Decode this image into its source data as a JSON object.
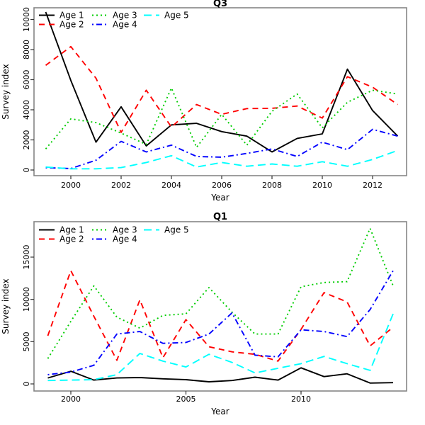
{
  "chart_data": [
    {
      "type": "line",
      "title": "Q3",
      "xlabel": "Year",
      "ylabel": "Survey index",
      "x": [
        1999,
        2000,
        2001,
        2002,
        2003,
        2004,
        2005,
        2006,
        2007,
        2008,
        2009,
        2010,
        2011,
        2012,
        2013
      ],
      "xlim": [
        1999,
        2013
      ],
      "ylim": [
        0,
        10500
      ],
      "grid": false,
      "legend_position": "top-left",
      "x_ticks": [
        2000,
        2002,
        2004,
        2006,
        2008,
        2010,
        2012
      ],
      "x_tick_labels": [
        "2000",
        "2002",
        "2004",
        "2006",
        "2008",
        "2010",
        "2012"
      ],
      "y_ticks": [
        0,
        2000,
        4000,
        6000,
        8000,
        10000
      ],
      "y_tick_labels": [
        "0",
        "2000",
        "4000",
        "6000",
        "8000",
        "10000"
      ],
      "series": [
        {
          "name": "Age 1",
          "color": "#000000",
          "linetype": "solid",
          "values": [
            10500,
            5950,
            1850,
            4200,
            1600,
            3000,
            3100,
            2550,
            2250,
            1200,
            2100,
            2400,
            6700,
            3950,
            2250
          ]
        },
        {
          "name": "Age 2",
          "color": "#FF0000",
          "linetype": "dashed",
          "values": [
            6950,
            8200,
            6100,
            2500,
            5300,
            2850,
            4350,
            3700,
            4080,
            4100,
            4250,
            3450,
            6200,
            5500,
            4350
          ]
        },
        {
          "name": "Age 3",
          "color": "#00CD00",
          "linetype": "dotted",
          "values": [
            1400,
            3400,
            3150,
            2450,
            1700,
            5450,
            1500,
            3700,
            1650,
            3900,
            5050,
            2800,
            4500,
            5300,
            5050
          ]
        },
        {
          "name": "Age 4",
          "color": "#0000FF",
          "linetype": "dotdash",
          "values": [
            150,
            100,
            650,
            1900,
            1200,
            1650,
            900,
            850,
            1100,
            1400,
            900,
            1850,
            1350,
            2700,
            2250
          ]
        },
        {
          "name": "Age 5",
          "color": "#00FFFF",
          "linetype": "longdash",
          "values": [
            200,
            80,
            80,
            160,
            500,
            950,
            200,
            500,
            250,
            400,
            250,
            550,
            250,
            700,
            1300
          ]
        }
      ]
    },
    {
      "type": "line",
      "title": "Q1",
      "xlabel": "Year",
      "ylabel": "Survey index",
      "x": [
        1999,
        2000,
        2001,
        2002,
        2003,
        2004,
        2005,
        2006,
        2007,
        2008,
        2009,
        2010,
        2011,
        2012,
        2013,
        2014
      ],
      "xlim": [
        1999,
        2014
      ],
      "ylim": [
        0,
        18400
      ],
      "grid": false,
      "legend_position": "top-left",
      "x_ticks": [
        2000,
        2005,
        2010
      ],
      "x_tick_labels": [
        "2000",
        "2005",
        "2010"
      ],
      "y_ticks": [
        0,
        5000,
        10000,
        15000
      ],
      "y_tick_labels": [
        "0",
        "5000",
        "10000",
        "15000"
      ],
      "series": [
        {
          "name": "Age 1",
          "color": "#000000",
          "linetype": "solid",
          "values": [
            700,
            1500,
            450,
            700,
            750,
            600,
            500,
            250,
            400,
            800,
            450,
            1900,
            860,
            1200,
            100,
            150
          ]
        },
        {
          "name": "Age 2",
          "color": "#FF0000",
          "linetype": "dashed",
          "values": [
            5700,
            13400,
            8000,
            2800,
            9950,
            3100,
            7600,
            4400,
            3800,
            3500,
            2700,
            6450,
            10800,
            9700,
            4500,
            6700
          ]
        },
        {
          "name": "Age 3",
          "color": "#00CD00",
          "linetype": "dotted",
          "values": [
            3000,
            7400,
            11600,
            7900,
            6600,
            8100,
            8300,
            11400,
            8500,
            5900,
            5900,
            11500,
            12000,
            12100,
            18400,
            11600
          ]
        },
        {
          "name": "Age 4",
          "color": "#0000FF",
          "linetype": "dotdash",
          "values": [
            1100,
            1400,
            2200,
            5900,
            6200,
            4800,
            4900,
            5900,
            8400,
            3400,
            3200,
            6400,
            6200,
            5600,
            8800,
            13400
          ]
        },
        {
          "name": "Age 5",
          "color": "#00FFFF",
          "linetype": "longdash",
          "values": [
            400,
            450,
            500,
            1100,
            3600,
            2700,
            2000,
            3500,
            2550,
            1300,
            1850,
            2400,
            3250,
            2400,
            1600,
            8300
          ]
        }
      ]
    }
  ]
}
